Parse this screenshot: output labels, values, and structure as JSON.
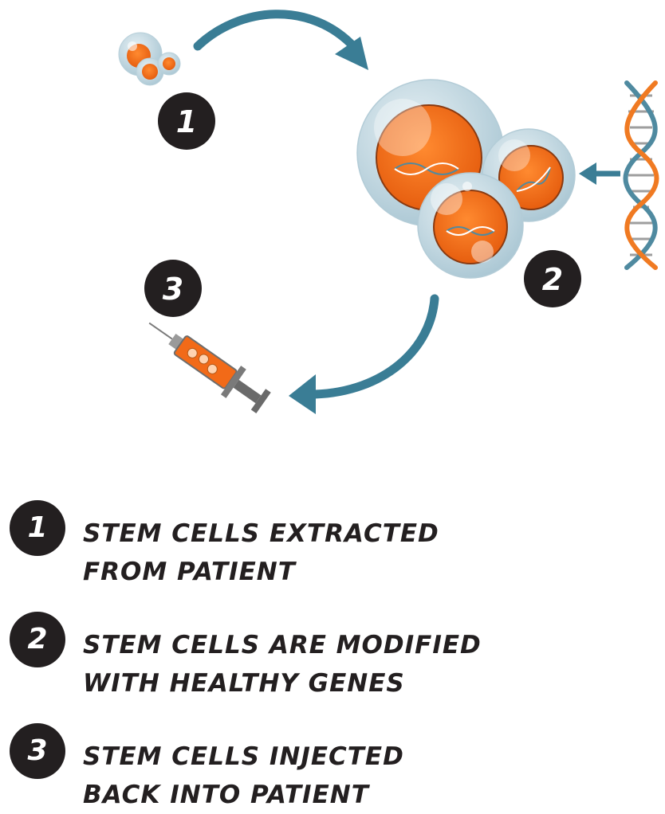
{
  "badges": {
    "step1": "1",
    "step2": "2",
    "step3": "3"
  },
  "legend": [
    {
      "number": "1",
      "line1": "STEM CELLS EXTRACTED",
      "line2": "FROM PATIENT"
    },
    {
      "number": "2",
      "line1": "STEM CELLS ARE MODIFIED",
      "line2": "WITH HEALTHY GENES"
    },
    {
      "number": "3",
      "line1": "STEM CELLS INJECTED",
      "line2": "BACK INTO PATIENT"
    }
  ],
  "colors": {
    "arrow": "#3a7d95",
    "cell_membrane": "#c9dde6",
    "cell_nucleus": "#f26a18",
    "dna_orange": "#f07a22",
    "dna_blue": "#4f8aa0",
    "badge": "#231f20"
  },
  "icons": [
    "stem-cells-icon",
    "modified-cells-icon",
    "dna-helix-icon",
    "syringe-icon",
    "cycle-arrow-icon"
  ]
}
